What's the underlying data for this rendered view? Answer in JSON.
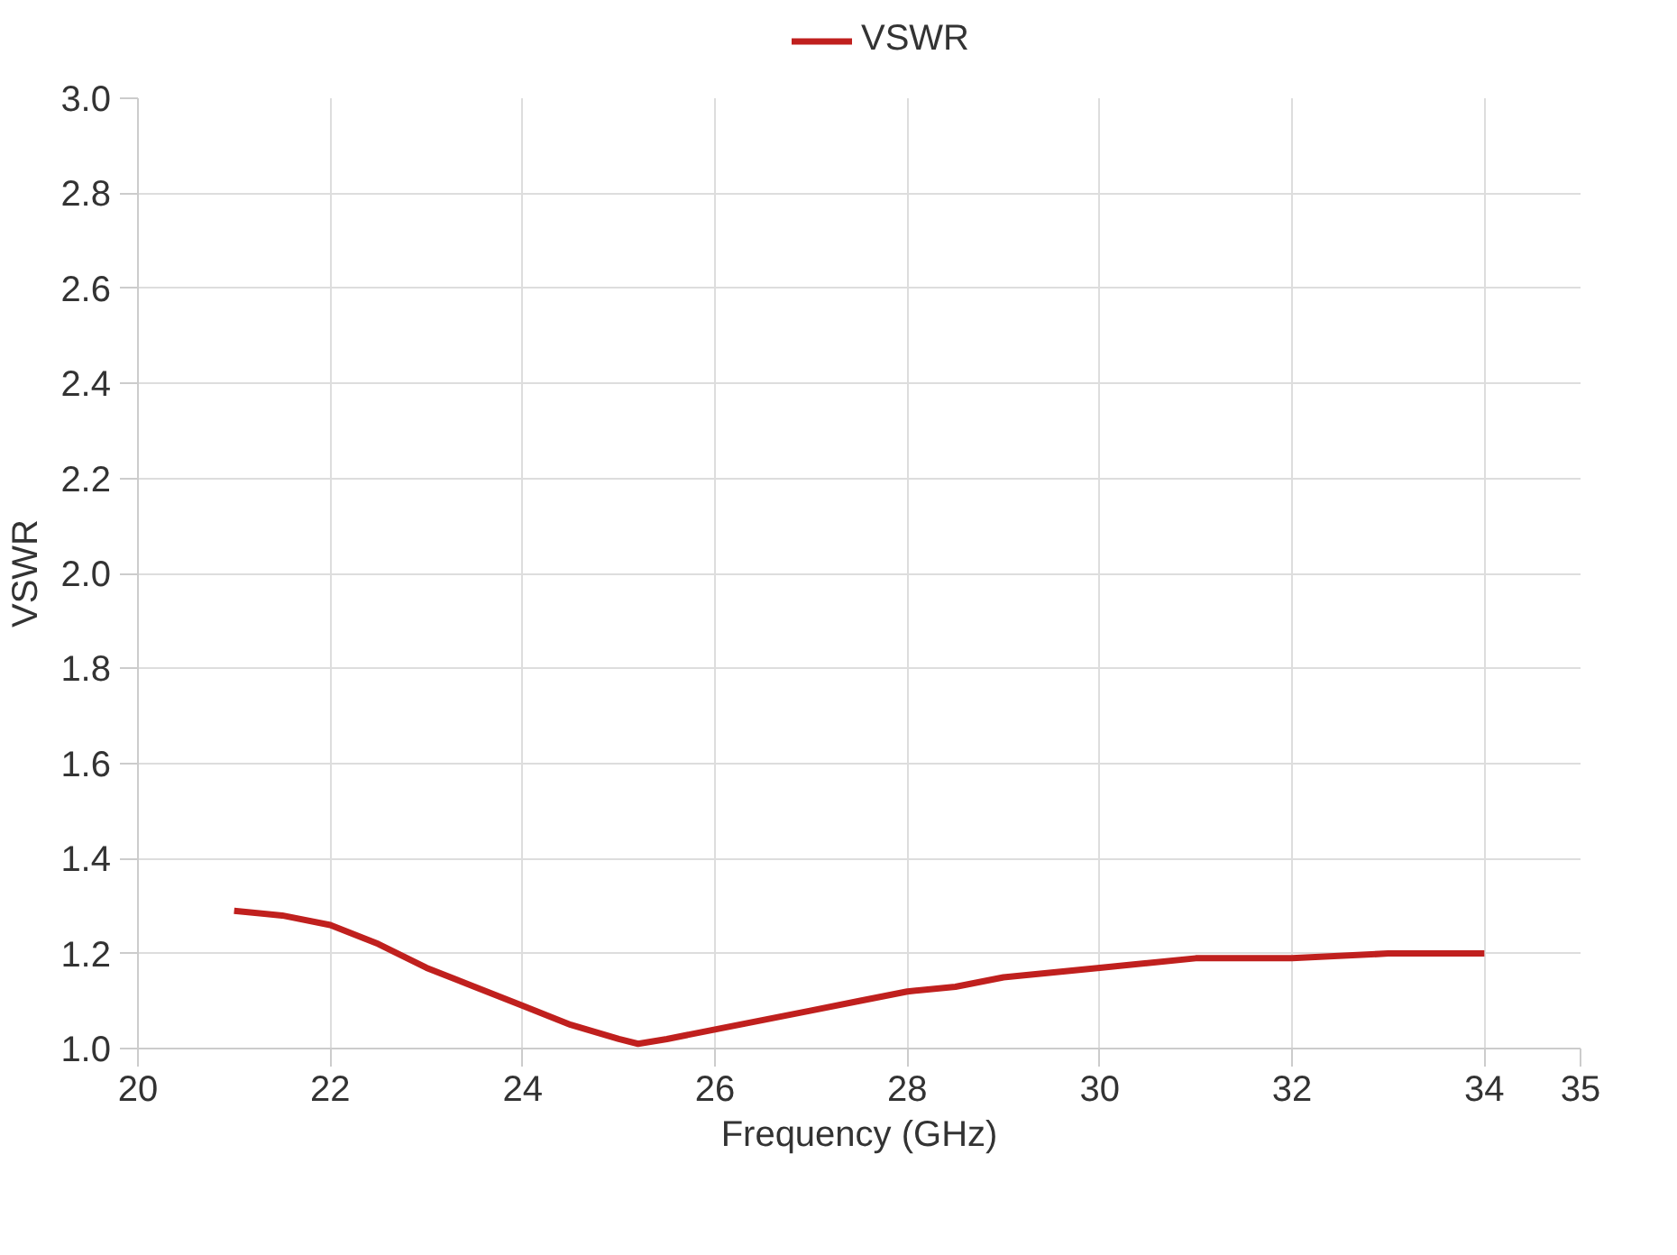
{
  "chart_data": {
    "type": "line",
    "xlabel": "Frequency (GHz)",
    "ylabel": "VSWR",
    "x": [
      21,
      21.5,
      22,
      22.5,
      23,
      23.5,
      24,
      24.5,
      25,
      25.2,
      25.5,
      26,
      26.5,
      27,
      27.5,
      28,
      28.5,
      29,
      29.5,
      30,
      31,
      32,
      33,
      33.5,
      34
    ],
    "series": [
      {
        "name": "VSWR",
        "color": "#c0201e",
        "values": [
          1.29,
          1.28,
          1.26,
          1.22,
          1.17,
          1.13,
          1.09,
          1.05,
          1.02,
          1.01,
          1.02,
          1.04,
          1.06,
          1.08,
          1.1,
          1.12,
          1.13,
          1.15,
          1.16,
          1.17,
          1.19,
          1.19,
          1.2,
          1.2,
          1.2
        ]
      }
    ],
    "xlim": [
      20,
      35
    ],
    "xticks": [
      20,
      22,
      24,
      26,
      28,
      30,
      32,
      34,
      35
    ],
    "ylim": [
      1.0,
      3.0
    ],
    "yticks": [
      {
        "value": 1.0,
        "label": "1.0"
      },
      1.2,
      1.4,
      1.6,
      1.8,
      {
        "value": 2.0,
        "label": "2.0"
      },
      2.2,
      2.4,
      2.6,
      2.8,
      {
        "value": 3.0,
        "label": "3.0"
      }
    ],
    "grid": true,
    "legend": "top",
    "line_style": "solid",
    "marker": "none"
  }
}
